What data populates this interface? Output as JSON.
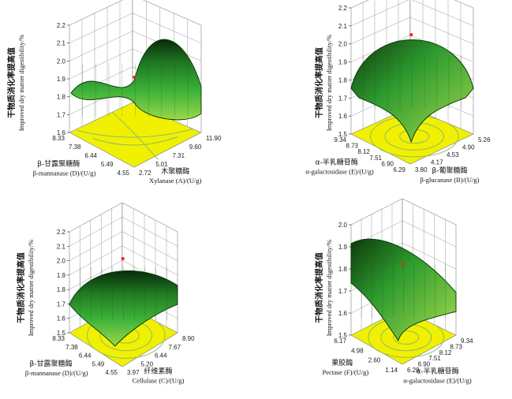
{
  "chart_data": [
    {
      "type": "surface",
      "zlabel_cn": "干物质消化率提高值",
      "zlabel_en": "Improved dry matter digestibility/%",
      "z_ticks": [
        "2.2",
        "2.1",
        "2.0",
        "1.9",
        "1.8",
        "1.7",
        "1.6"
      ],
      "x_label_cn": "木聚糖酶",
      "x_label_en": "Xylanase (A)/(U/g)",
      "x_ticks": [
        "2.72",
        "5.01",
        "7.31",
        "9.60",
        "11.90"
      ],
      "y_label_cn": "β-甘露聚糖酶",
      "y_label_en": "β-mannanase  (D)/(U/g)",
      "y_ticks": [
        "4.55",
        "5.49",
        "6.44",
        "7.38",
        "8.33"
      ],
      "shape": "saddle",
      "zlim": [
        1.6,
        2.2
      ]
    },
    {
      "type": "surface",
      "zlabel_cn": "干物质消化率提高值",
      "zlabel_en": "Improved dry matter digestibility/%",
      "z_ticks": [
        "2.2",
        "2.1",
        "2.0",
        "1.9",
        "1.8",
        "1.7",
        "1.6",
        "1.5"
      ],
      "x_label_cn": "β-葡聚糖酶",
      "x_label_en": "β-glucanase (B)/(U/g)",
      "x_ticks": [
        "3.80",
        "4.17",
        "4.53",
        "4.90",
        "5.26"
      ],
      "y_label_cn": "α-半乳糖苷酶",
      "y_label_en": "α-galactosidase (E)/(U/g)",
      "y_ticks": [
        "6.29",
        "6.90",
        "7.51",
        "8.12",
        "8.73",
        "9.34"
      ],
      "shape": "dome",
      "zlim": [
        1.5,
        2.2
      ]
    },
    {
      "type": "surface",
      "zlabel_cn": "干物质消化率提高值",
      "zlabel_en": "Improved dry matter digestibility/%",
      "z_ticks": [
        "2.2",
        "2.1",
        "2.0",
        "1.9",
        "1.8",
        "1.7",
        "1.6",
        "1.5"
      ],
      "x_label_cn": "纤维素酶",
      "x_label_en": "Cellulase (C)/(U/g)",
      "x_ticks": [
        "3.97",
        "5.20",
        "6.44",
        "7.67",
        "8.90"
      ],
      "y_label_cn": "β-甘露聚糖酶",
      "y_label_en": "β-mannanase  (D)/(U/g)",
      "y_ticks": [
        "4.55",
        "5.49",
        "6.44",
        "7.38",
        "8.33"
      ],
      "shape": "ridge",
      "zlim": [
        1.5,
        2.2
      ]
    },
    {
      "type": "surface",
      "zlabel_cn": "干物质消化率提高值",
      "zlabel_en": "Improved dry matter digestibility/%",
      "z_ticks": [
        "2.0",
        "1.9",
        "1.8",
        "1.7",
        "1.6",
        "1.5"
      ],
      "x_label_cn": "α-半乳糖苷酶",
      "x_label_en": "α-galactosidase (E)/(U/g)",
      "x_ticks": [
        "6.29",
        "6.90",
        "7.51",
        "8.12",
        "8.73",
        "9.34"
      ],
      "y_label_cn": "果胶酶",
      "y_label_en": "Pectase  (F)/(U/g)",
      "y_ticks": [
        "1.14",
        "2.60",
        "4.98",
        "6.17"
      ],
      "shape": "slope",
      "zlim": [
        1.5,
        2.0
      ]
    }
  ]
}
